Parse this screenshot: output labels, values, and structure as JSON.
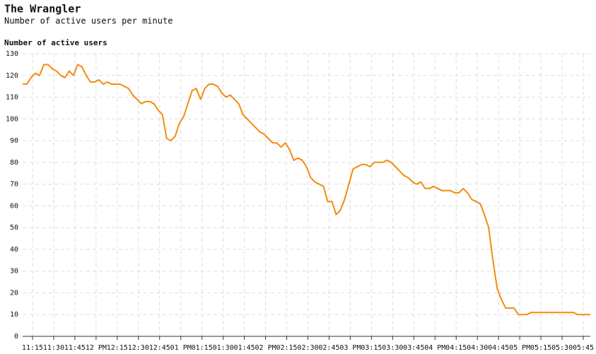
{
  "chart_data": {
    "type": "line",
    "title": "The Wrangler",
    "subtitle": "Number of active users per minute",
    "y_label": "Number of active users",
    "x": [
      668,
      671,
      674,
      677,
      680,
      683,
      686,
      689,
      692,
      695,
      698,
      701,
      704,
      707,
      710,
      713,
      716,
      719,
      722,
      725,
      728,
      731,
      734,
      737,
      740,
      743,
      746,
      749,
      752,
      755,
      758,
      761,
      764,
      767,
      770,
      773,
      776,
      779,
      782,
      785,
      788,
      791,
      794,
      797,
      800,
      803,
      806,
      809,
      812,
      815,
      818,
      821,
      824,
      827,
      830,
      833,
      836,
      839,
      842,
      845,
      848,
      851,
      854,
      857,
      860,
      863,
      866,
      869,
      872,
      875,
      878,
      881,
      884,
      887,
      890,
      893,
      896,
      899,
      902,
      905,
      908,
      911,
      914,
      917,
      920,
      923,
      926,
      929,
      932,
      935,
      938,
      941,
      944,
      947,
      950,
      953,
      956,
      959,
      962,
      965,
      968,
      971,
      974,
      977,
      980,
      983,
      986,
      989,
      992,
      995,
      998,
      1001,
      1004,
      1007,
      1010,
      1013,
      1016,
      1019,
      1022,
      1025,
      1028,
      1031,
      1034,
      1037,
      1040,
      1043,
      1046,
      1049,
      1052,
      1055,
      1058,
      1061,
      1064,
      1067,
      1070
    ],
    "series": [
      {
        "name": "Active users",
        "color": "#f28c0f",
        "values": [
          116,
          116,
          119,
          121,
          120,
          125,
          125,
          123,
          122,
          120,
          119,
          122,
          120,
          125,
          124,
          120,
          117,
          117,
          118,
          116,
          117,
          116,
          116,
          116,
          115,
          114,
          111,
          109,
          107,
          108,
          108,
          107,
          104,
          102,
          91,
          90,
          92,
          98,
          101,
          107,
          113,
          114,
          109,
          114,
          116,
          116,
          115,
          112,
          110,
          111,
          109,
          107,
          102,
          100,
          98,
          96,
          94,
          93,
          91,
          89,
          89,
          87,
          89,
          86,
          81,
          82,
          81,
          78,
          73,
          71,
          70,
          69,
          62,
          62,
          56,
          58,
          63,
          70,
          77,
          78,
          79,
          79,
          78,
          80,
          80,
          80,
          81,
          80,
          78,
          76,
          74,
          73,
          71,
          70,
          71,
          68,
          68,
          69,
          68,
          67,
          67,
          67,
          66,
          66,
          68,
          66,
          63,
          62,
          61,
          56,
          50,
          35,
          22,
          17,
          13,
          13,
          13,
          10,
          10,
          10,
          11,
          11,
          11,
          11,
          11,
          11,
          11,
          11,
          11,
          11,
          11,
          10,
          10,
          10,
          10
        ]
      }
    ],
    "xlim": [
      668,
      1070
    ],
    "xticks": [
      {
        "value": 675,
        "label": "11:15"
      },
      {
        "value": 690,
        "label": "11:30"
      },
      {
        "value": 705,
        "label": "11:45"
      },
      {
        "value": 720,
        "label": "12 PM"
      },
      {
        "value": 735,
        "label": "12:15"
      },
      {
        "value": 750,
        "label": "12:30"
      },
      {
        "value": 765,
        "label": "12:45"
      },
      {
        "value": 780,
        "label": "01 PM"
      },
      {
        "value": 795,
        "label": "01:15"
      },
      {
        "value": 810,
        "label": "01:30"
      },
      {
        "value": 825,
        "label": "01:45"
      },
      {
        "value": 840,
        "label": "02 PM"
      },
      {
        "value": 855,
        "label": "02:15"
      },
      {
        "value": 870,
        "label": "02:30"
      },
      {
        "value": 885,
        "label": "02:45"
      },
      {
        "value": 900,
        "label": "03 PM"
      },
      {
        "value": 915,
        "label": "03:15"
      },
      {
        "value": 930,
        "label": "03:30"
      },
      {
        "value": 945,
        "label": "03:45"
      },
      {
        "value": 960,
        "label": "04 PM"
      },
      {
        "value": 975,
        "label": "04:15"
      },
      {
        "value": 990,
        "label": "04:30"
      },
      {
        "value": 1005,
        "label": "04:45"
      },
      {
        "value": 1020,
        "label": "05 PM"
      },
      {
        "value": 1035,
        "label": "05:15"
      },
      {
        "value": 1050,
        "label": "05:30"
      },
      {
        "value": 1065,
        "label": "05:45"
      }
    ],
    "ylim": [
      0,
      130
    ],
    "yticks": [
      0,
      10,
      20,
      30,
      40,
      50,
      60,
      70,
      80,
      90,
      100,
      110,
      120,
      130
    ],
    "grid": true
  }
}
